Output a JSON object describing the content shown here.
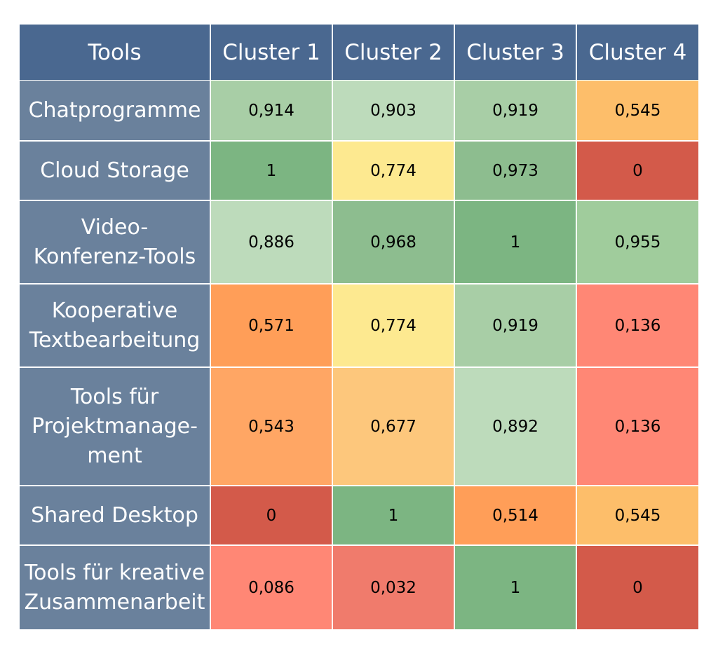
{
  "chart_data": {
    "type": "heatmap",
    "corner_label": "Tools",
    "columns": [
      "Cluster 1",
      "Cluster 2",
      "Cluster 3",
      "Cluster 4"
    ],
    "rows": [
      {
        "label": "Chatprogramme",
        "values": [
          "0,914",
          "0,903",
          "0,919",
          "0,545"
        ]
      },
      {
        "label": "Cloud Storage",
        "values": [
          "1",
          "0,774",
          "0,973",
          "0"
        ]
      },
      {
        "label": "Video-\nKonferenz-Tools",
        "values": [
          "0,886",
          "0,968",
          "1",
          "0,955"
        ]
      },
      {
        "label": "Kooperative\nTextbearbeitung",
        "values": [
          "0,571",
          "0,774",
          "0,919",
          "0,136"
        ]
      },
      {
        "label": "Tools für\nProjektmanage-\nment",
        "values": [
          "0,543",
          "0,677",
          "0,892",
          "0,136"
        ]
      },
      {
        "label": "Shared Desktop",
        "values": [
          "0",
          "1",
          "0,514",
          "0,545"
        ]
      },
      {
        "label": "Tools für kreative\nZusammenarbeit",
        "values": [
          "0,086",
          "0,032",
          "1",
          "0"
        ]
      }
    ],
    "cell_colors": [
      [
        "#a8cea6",
        "#bddbbb",
        "#a8cea6",
        "#fdbe6a"
      ],
      [
        "#7cb582",
        "#fde990",
        "#8dbd8f",
        "#d35a4a"
      ],
      [
        "#bddbbb",
        "#8dbd8f",
        "#7cb582",
        "#a0cc9c"
      ],
      [
        "#ff9e58",
        "#fde990",
        "#a8cea6",
        "#ff8775"
      ],
      [
        "#ffa664",
        "#fdc77c",
        "#bddbbb",
        "#ff8775"
      ],
      [
        "#d35a4a",
        "#7cb582",
        "#ff9e58",
        "#fdbe6a"
      ],
      [
        "#ff8775",
        "#f07b6c",
        "#7cb582",
        "#d35a4a"
      ]
    ],
    "header_color": "#4a6890",
    "row_label_color": "#6a819c"
  }
}
